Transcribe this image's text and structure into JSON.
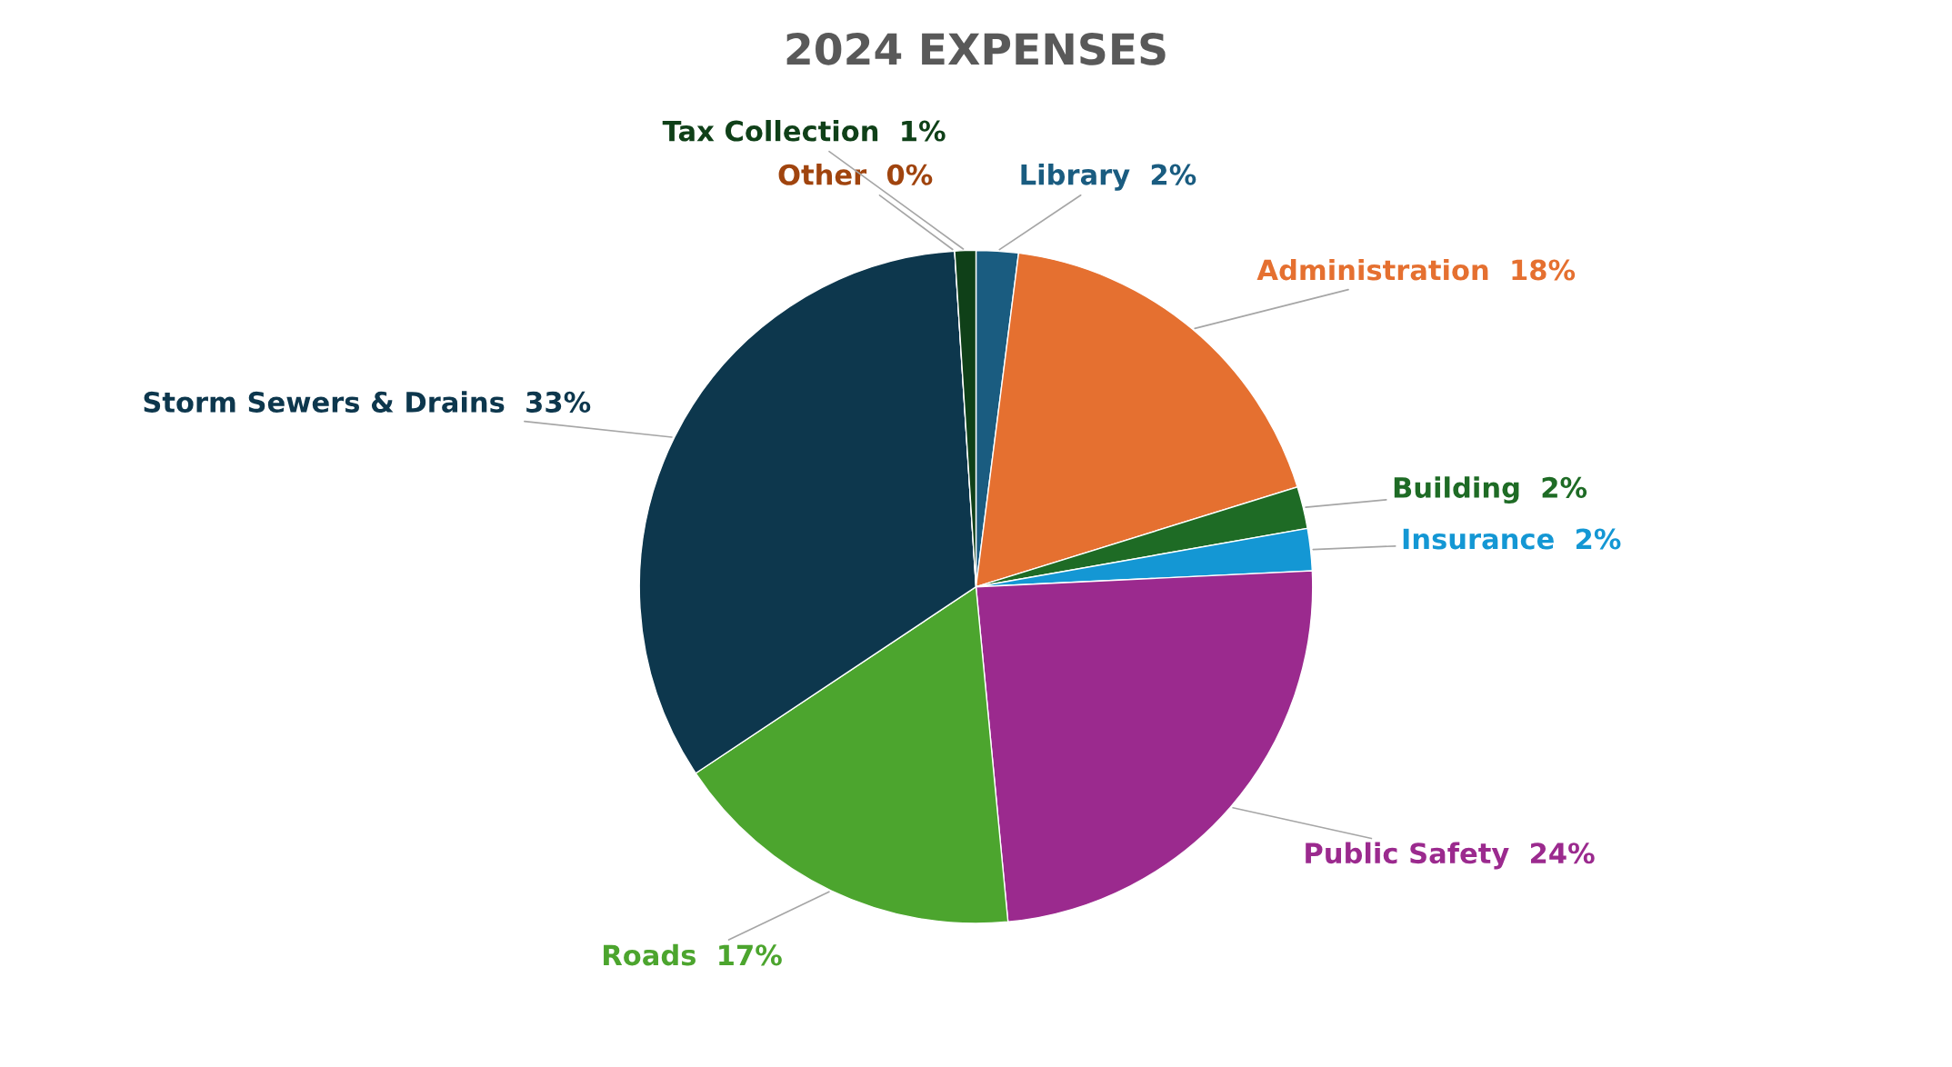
{
  "chart_data": {
    "type": "pie",
    "title": "2024 EXPENSES",
    "categories": [
      "Library",
      "Administration",
      "Building",
      "Insurance",
      "Public Safety",
      "Roads",
      "Storm Sewers & Drains",
      "Other",
      "Tax Collection"
    ],
    "values": [
      2,
      18,
      2,
      2,
      24,
      17,
      33,
      0,
      1
    ],
    "value_labels": [
      "2%",
      "18%",
      "2%",
      "2%",
      "24%",
      "17%",
      "33%",
      "0%",
      "1%"
    ],
    "colors": [
      "#1a5c80",
      "#e57030",
      "#1e6b25",
      "#1497d4",
      "#9b2a8e",
      "#4ca52e",
      "#0d374d",
      "#a0440e",
      "#0f4018"
    ],
    "legend": false
  }
}
